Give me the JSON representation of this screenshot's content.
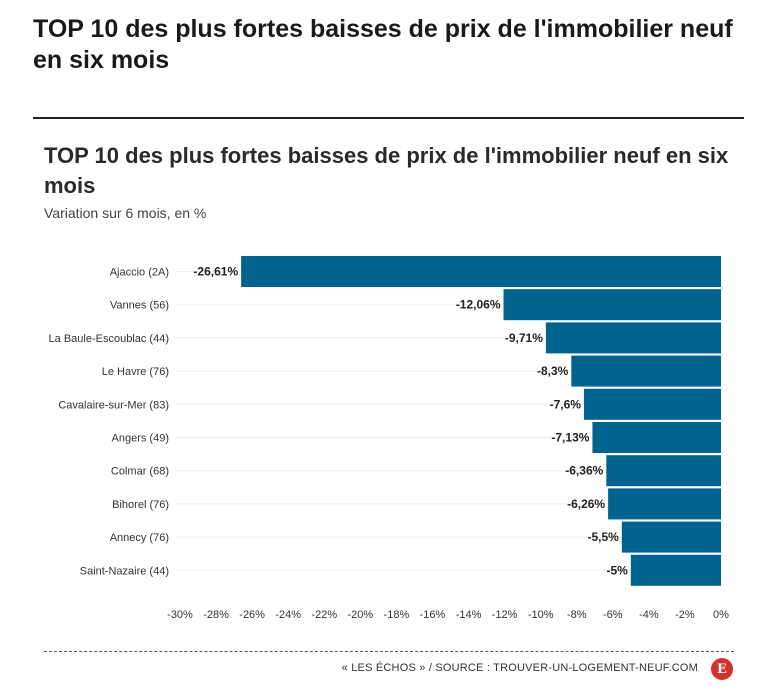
{
  "header": {
    "title": "TOP 10 des plus fortes baisses de prix de l'immobilier neuf en six mois"
  },
  "footer": {
    "source": "« LES ÉCHOS » / SOURCE : TROUVER-UN-LOGEMENT-NEUF.COM",
    "logo_letter": "E",
    "logo_color": "#d3302b"
  },
  "chart_data": {
    "type": "bar",
    "orientation": "horizontal",
    "title": "TOP 10 des plus fortes baisses de prix de l'immobilier neuf en six mois",
    "subtitle": "Variation sur 6 mois, en %",
    "categories": [
      "Ajaccio (2A)",
      "Vannes (56)",
      "La Baule-Escoublac (44)",
      "Le Havre (76)",
      "Cavalaire-sur-Mer (83)",
      "Angers (49)",
      "Colmar (68)",
      "Bihorel (76)",
      "Annecy (76)",
      "Saint-Nazaire (44)"
    ],
    "values": [
      -26.61,
      -12.06,
      -9.71,
      -8.3,
      -7.6,
      -7.13,
      -6.36,
      -6.26,
      -5.5,
      -5
    ],
    "value_labels": [
      "-26,61%",
      "-12,06%",
      "-9,71%",
      "-8,3%",
      "-7,6%",
      "-7,13%",
      "-6,36%",
      "-6,26%",
      "-5,5%",
      "-5%"
    ],
    "xlim": [
      -30,
      0
    ],
    "x_ticks": [
      -30,
      -28,
      -26,
      -24,
      -22,
      -20,
      -18,
      -16,
      -14,
      -12,
      -10,
      -8,
      -6,
      -4,
      -2,
      0
    ],
    "x_tick_labels": [
      "-30%",
      "-28%",
      "-26%",
      "-24%",
      "-22%",
      "-20%",
      "-18%",
      "-16%",
      "-14%",
      "-12%",
      "-10%",
      "-8%",
      "-6%",
      "-4%",
      "-2%",
      "0%"
    ],
    "bar_color": "#00628f",
    "grid": false
  }
}
